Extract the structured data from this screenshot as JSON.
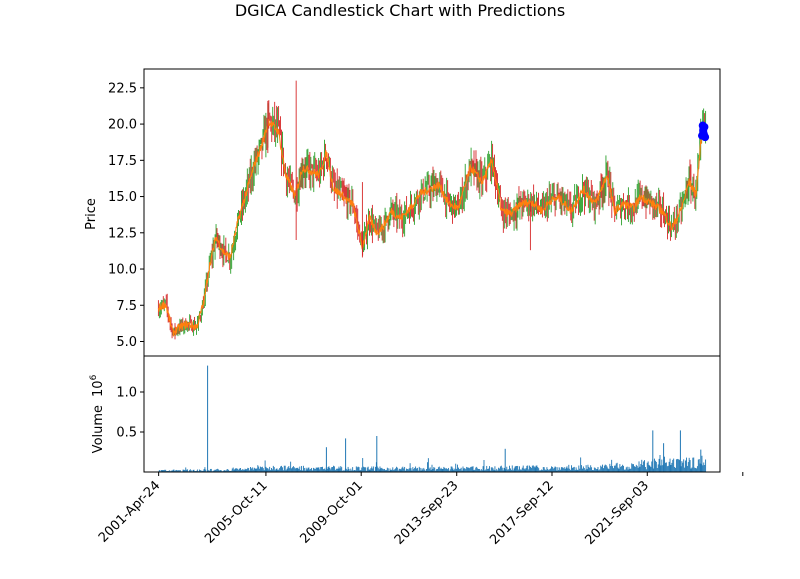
{
  "chart_data": [
    {
      "type": "candlestick",
      "title": "DGICA Candlestick Chart with Predictions",
      "ylabel": "Price",
      "xlabel": "",
      "ylim": [
        4.0,
        23.8
      ],
      "yticks": [
        5.0,
        7.5,
        10.0,
        12.5,
        15.0,
        17.5,
        20.0,
        22.5
      ],
      "ytick_labels": [
        "5.0",
        "7.5",
        "10.0",
        "12.5",
        "15.0",
        "17.5",
        "20.0",
        "22.5"
      ],
      "x_range_years": [
        2000.7,
        2024.7
      ],
      "price_path": {
        "years": [
          2001.3,
          2001.6,
          2001.9,
          2002.2,
          2002.5,
          2002.9,
          2003.2,
          2003.4,
          2003.7,
          2004.0,
          2004.3,
          2004.6,
          2005.0,
          2005.3,
          2005.6,
          2005.9,
          2006.3,
          2006.6,
          2007.0,
          2007.3,
          2007.6,
          2008.0,
          2008.3,
          2008.6,
          2008.9,
          2009.1,
          2009.4,
          2009.8,
          2010.1,
          2010.4,
          2010.7,
          2011.0,
          2011.4,
          2011.8,
          2012.2,
          2012.6,
          2013.0,
          2013.4,
          2013.8,
          2014.3,
          2014.8,
          2015.2,
          2015.6,
          2016.0,
          2016.4,
          2016.9,
          2017.3,
          2017.6,
          2018.0,
          2018.5,
          2019.0,
          2019.5,
          2020.0,
          2020.3,
          2020.7,
          2021.1,
          2021.4,
          2021.8,
          2022.3,
          2022.7,
          2023.1,
          2023.4,
          2023.7,
          2023.95,
          2024.1
        ],
        "values": [
          7.3,
          7.6,
          5.6,
          6.0,
          6.2,
          6.0,
          7.8,
          10.0,
          12.2,
          11.2,
          10.8,
          13.2,
          15.5,
          17.2,
          18.5,
          20.2,
          19.5,
          16.5,
          15.0,
          17.0,
          16.8,
          16.5,
          18.0,
          15.5,
          15.2,
          14.8,
          14.5,
          11.5,
          13.5,
          12.5,
          13.0,
          14.0,
          13.5,
          14.2,
          15.2,
          15.5,
          15.8,
          14.5,
          14.2,
          17.0,
          16.0,
          17.5,
          14.0,
          13.8,
          14.5,
          14.6,
          14.0,
          14.7,
          14.9,
          14.0,
          15.5,
          14.5,
          16.5,
          14.0,
          14.5,
          14.2,
          15.0,
          14.6,
          14.0,
          12.8,
          14.2,
          16.0,
          15.2,
          19.5,
          20.0
        ]
      },
      "spikes": [
        {
          "year": 2007.04,
          "high": 23.0,
          "low": 12.0
        },
        {
          "year": 2005.86,
          "high": 21.6,
          "low": 18.0
        },
        {
          "year": 2009.8,
          "high": 16.0,
          "low": 10.8
        },
        {
          "year": 2016.8,
          "high": 14.6,
          "low": 11.3
        }
      ],
      "predictions": {
        "color": "#0000ff",
        "years": [
          2023.95,
          2024.0,
          2024.05,
          2023.98,
          2024.03,
          2024.08,
          2024.0
        ],
        "values": [
          19.2,
          19.6,
          19.8,
          19.9,
          19.3,
          19.1,
          19.5
        ]
      },
      "colors": {
        "up": "#2ca02c",
        "down": "#d62728",
        "close_line": "#ff7f0e"
      }
    },
    {
      "type": "bar",
      "ylabel": "Volume",
      "exponent_label": "10",
      "exponent_power": "6",
      "ylim": [
        0.0,
        1.45
      ],
      "yticks": [
        0.5,
        1.0
      ],
      "ytick_labels": [
        "0.5",
        "1.0"
      ],
      "bar_color": "#1f77b4",
      "volume_envelope": {
        "years": [
          2001.3,
          2004.0,
          2006.0,
          2008.0,
          2010.0,
          2012.0,
          2014.0,
          2016.0,
          2018.0,
          2020.0,
          2021.0,
          2022.0,
          2023.0,
          2024.1
        ],
        "values": [
          0.02,
          0.03,
          0.06,
          0.06,
          0.05,
          0.05,
          0.05,
          0.06,
          0.06,
          0.07,
          0.1,
          0.12,
          0.12,
          0.16
        ]
      },
      "volume_spikes": [
        {
          "year": 2003.35,
          "value": 1.33
        },
        {
          "year": 2021.9,
          "value": 0.52
        },
        {
          "year": 2023.05,
          "value": 0.52
        },
        {
          "year": 2010.4,
          "value": 0.45
        },
        {
          "year": 2009.1,
          "value": 0.42
        },
        {
          "year": 2008.3,
          "value": 0.31
        },
        {
          "year": 2015.75,
          "value": 0.29
        },
        {
          "year": 2022.35,
          "value": 0.36
        },
        {
          "year": 2023.9,
          "value": 0.28
        }
      ],
      "x_ticks": [
        {
          "year": 2001.31,
          "label": "2001-Apr-24"
        },
        {
          "year": 2005.78,
          "label": "2005-Oct-11"
        },
        {
          "year": 2009.75,
          "label": "2009-Oct-01"
        },
        {
          "year": 2013.73,
          "label": "2013-Sep-23"
        },
        {
          "year": 2017.7,
          "label": "2017-Sep-12"
        },
        {
          "year": 2021.67,
          "label": "2021-Sep-03"
        },
        {
          "year": 2025.65,
          "label": ""
        }
      ]
    }
  ]
}
